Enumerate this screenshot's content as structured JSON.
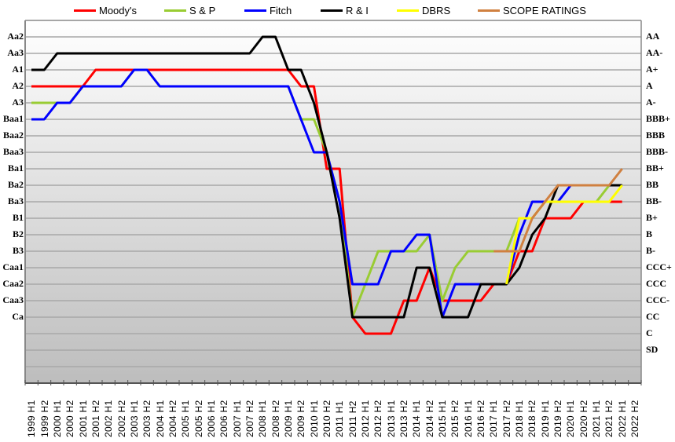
{
  "chart_data": {
    "type": "line",
    "title": "",
    "xlabel": "",
    "ylabel": "",
    "legend_position": "top",
    "grid": true,
    "categories": [
      "1999 H1",
      "1999 H2",
      "2000 H1",
      "2000 H2",
      "2001 H1",
      "2001 H2",
      "2002 H1",
      "2002 H2",
      "2003 H1",
      "2003 H2",
      "2004 H1",
      "2004 H2",
      "2005 H1",
      "2005 H2",
      "2006 H1",
      "2006 H2",
      "2007 H1",
      "2007 H2",
      "2008 H1",
      "2008 H2",
      "2009 H1",
      "2009 H2",
      "2010 H1",
      "2010 H2",
      "2011 H1",
      "2011 H2",
      "2012 H1",
      "2012 H2",
      "2013 H1",
      "2013 H2",
      "2014 H1",
      "2014 H2",
      "2015 H1",
      "2015 H2",
      "2016 H1",
      "2016 H2",
      "2017 H1",
      "2017 H2",
      "2018 H1",
      "2018 H2",
      "2019 H1",
      "2019 H2",
      "2020 H1",
      "2020 H2",
      "2021 H1",
      "2021 H2",
      "2022 H1",
      "2022 H2"
    ],
    "y_scale_note": "Notch scale: 20 = Aa2/AA (top) down to 1 = SD; 0 and -1 are unlabeled gridlines",
    "ylim": [
      -1,
      21
    ],
    "y_ticks_left": [
      {
        "value": 20,
        "label": "Aa2"
      },
      {
        "value": 19,
        "label": "Aa3"
      },
      {
        "value": 18,
        "label": "A1"
      },
      {
        "value": 17,
        "label": "A2"
      },
      {
        "value": 16,
        "label": "A3"
      },
      {
        "value": 15,
        "label": "Baa1"
      },
      {
        "value": 14,
        "label": "Baa2"
      },
      {
        "value": 13,
        "label": "Baa3"
      },
      {
        "value": 12,
        "label": "Ba1"
      },
      {
        "value": 11,
        "label": "Ba2"
      },
      {
        "value": 10,
        "label": "Ba3"
      },
      {
        "value": 9,
        "label": "B1"
      },
      {
        "value": 8,
        "label": "B2"
      },
      {
        "value": 7,
        "label": "B3"
      },
      {
        "value": 6,
        "label": "Caa1"
      },
      {
        "value": 5,
        "label": "Caa2"
      },
      {
        "value": 4,
        "label": "Caa3"
      },
      {
        "value": 3,
        "label": "Ca"
      }
    ],
    "y_ticks_right": [
      {
        "value": 20,
        "label": "AA"
      },
      {
        "value": 19,
        "label": "AA-"
      },
      {
        "value": 18,
        "label": "A+"
      },
      {
        "value": 17,
        "label": "A"
      },
      {
        "value": 16,
        "label": "A-"
      },
      {
        "value": 15,
        "label": "BBB+"
      },
      {
        "value": 14,
        "label": "BBB"
      },
      {
        "value": 13,
        "label": "BBB-"
      },
      {
        "value": 12,
        "label": "BB+"
      },
      {
        "value": 11,
        "label": "BB"
      },
      {
        "value": 10,
        "label": "BB-"
      },
      {
        "value": 9,
        "label": "B+"
      },
      {
        "value": 8,
        "label": "B"
      },
      {
        "value": 7,
        "label": "B-"
      },
      {
        "value": 6,
        "label": "CCC+"
      },
      {
        "value": 5,
        "label": "CCC"
      },
      {
        "value": 4,
        "label": "CCC-"
      },
      {
        "value": 3,
        "label": "CC"
      },
      {
        "value": 2,
        "label": "C"
      },
      {
        "value": 1,
        "label": "SD"
      }
    ],
    "series": [
      {
        "name": "Moody's",
        "color": "#ff0000",
        "values": [
          17,
          17,
          17,
          17,
          17,
          18,
          18,
          18,
          18,
          18,
          18,
          18,
          18,
          18,
          18,
          18,
          18,
          18,
          18,
          18,
          18,
          17,
          17,
          12,
          12,
          3,
          2,
          2,
          2,
          4,
          4,
          6,
          4,
          4,
          4,
          4,
          5,
          5,
          7,
          7,
          9,
          9,
          9,
          10,
          10,
          10,
          10,
          null
        ]
      },
      {
        "name": "S & P",
        "color": "#99cc33",
        "values": [
          16,
          16,
          16,
          16,
          17,
          17,
          17,
          17,
          18,
          18,
          17,
          17,
          17,
          17,
          17,
          17,
          17,
          17,
          17,
          17,
          17,
          15,
          15,
          13,
          10,
          3,
          5,
          7,
          7,
          7,
          7,
          8,
          4,
          6,
          7,
          7,
          7,
          7,
          9,
          9,
          10,
          10,
          10,
          10,
          10,
          11,
          11,
          null
        ]
      },
      {
        "name": "Fitch",
        "color": "#0000ff",
        "values": [
          15,
          15,
          16,
          16,
          17,
          17,
          17,
          17,
          18,
          18,
          17,
          17,
          17,
          17,
          17,
          17,
          17,
          17,
          17,
          17,
          17,
          15,
          13,
          13,
          10,
          5,
          5,
          5,
          7,
          7,
          8,
          8,
          3,
          5,
          5,
          5,
          5,
          5,
          8,
          10,
          10,
          10,
          11,
          11,
          11,
          11,
          11,
          null
        ]
      },
      {
        "name": "R & I",
        "color": "#000000",
        "values": [
          18,
          18,
          19,
          19,
          19,
          19,
          19,
          19,
          19,
          19,
          19,
          19,
          19,
          19,
          19,
          19,
          19,
          19,
          20,
          20,
          18,
          18,
          16,
          13,
          9,
          3,
          3,
          3,
          3,
          3,
          6,
          6,
          3,
          3,
          3,
          5,
          5,
          5,
          6,
          8,
          9,
          11,
          11,
          11,
          11,
          11,
          11,
          null
        ]
      },
      {
        "name": "DBRS",
        "color": "#ffff00",
        "values": [
          null,
          null,
          null,
          null,
          null,
          null,
          null,
          null,
          null,
          null,
          null,
          null,
          null,
          null,
          null,
          null,
          null,
          null,
          null,
          null,
          null,
          null,
          null,
          null,
          null,
          null,
          null,
          null,
          null,
          null,
          null,
          null,
          null,
          null,
          null,
          null,
          null,
          5,
          9,
          9,
          10,
          10,
          10,
          10,
          10,
          10,
          11,
          null
        ]
      },
      {
        "name": "SCOPE RATINGS",
        "color": "#d08040",
        "values": [
          null,
          null,
          null,
          null,
          null,
          null,
          null,
          null,
          null,
          null,
          null,
          null,
          null,
          null,
          null,
          null,
          null,
          null,
          null,
          null,
          null,
          null,
          null,
          null,
          null,
          null,
          null,
          null,
          null,
          null,
          null,
          null,
          null,
          null,
          null,
          null,
          7,
          7,
          7,
          9,
          10,
          11,
          11,
          11,
          11,
          11,
          12,
          null
        ]
      }
    ]
  },
  "legend": {
    "items": [
      {
        "label": "Moody's",
        "color": "#ff0000"
      },
      {
        "label": "S & P",
        "color": "#99cc33"
      },
      {
        "label": "Fitch",
        "color": "#0000ff"
      },
      {
        "label": "R & I",
        "color": "#000000"
      },
      {
        "label": "DBRS",
        "color": "#ffff00"
      },
      {
        "label": "SCOPE RATINGS",
        "color": "#d08040"
      }
    ]
  }
}
